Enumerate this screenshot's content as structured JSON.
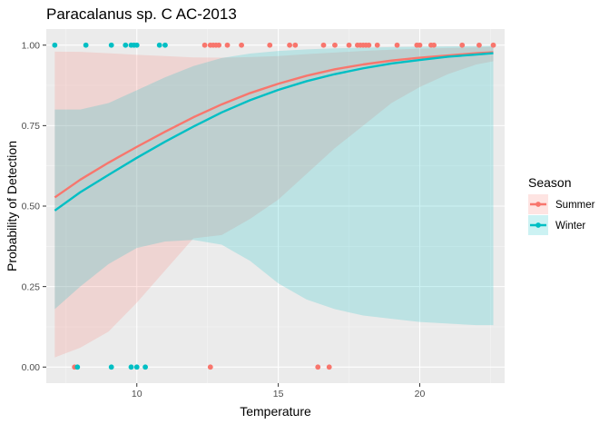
{
  "chart_data": {
    "type": "scatter",
    "title": "Paracalanus sp. C AC-2013",
    "xlabel": "Temperature",
    "ylabel": "Probability of Detection",
    "xlim": [
      6.8,
      23.0
    ],
    "ylim": [
      -0.05,
      1.05
    ],
    "x_ticks": [
      10,
      15,
      20
    ],
    "x_tick_labels": [
      "10",
      "15",
      "20"
    ],
    "y_ticks": [
      0,
      0.25,
      0.5,
      0.75,
      1.0
    ],
    "y_tick_labels": [
      "0.00",
      "0.25",
      "0.50",
      "0.75",
      "1.00"
    ],
    "grid": true,
    "legend": {
      "title": "Season",
      "position": "right"
    },
    "series": [
      {
        "name": "Summer",
        "color": "#F8766D",
        "points": {
          "x": [
            7.8,
            12.6,
            16.4,
            16.8,
            12.4,
            12.6,
            12.7,
            12.8,
            12.9,
            13.2,
            13.7,
            14.7,
            15.4,
            15.6,
            16.6,
            17.0,
            17.5,
            17.8,
            17.9,
            18.0,
            18.1,
            18.2,
            18.5,
            19.2,
            19.9,
            20.0,
            20.4,
            20.5,
            21.5,
            22.1,
            22.6
          ],
          "y": [
            0,
            0,
            0,
            0,
            1,
            1,
            1,
            1,
            1,
            1,
            1,
            1,
            1,
            1,
            1,
            1,
            1,
            1,
            1,
            1,
            1,
            1,
            1,
            1,
            1,
            1,
            1,
            1,
            1,
            1,
            1
          ]
        },
        "fit": {
          "x": [
            7.1,
            8,
            9,
            10,
            11,
            12,
            13,
            14,
            15,
            16,
            17,
            18,
            19,
            20,
            21,
            22,
            22.6
          ],
          "y": [
            0.527,
            0.582,
            0.635,
            0.684,
            0.731,
            0.776,
            0.816,
            0.851,
            0.88,
            0.905,
            0.925,
            0.94,
            0.952,
            0.961,
            0.968,
            0.975,
            0.978
          ],
          "lower": [
            0.03,
            0.06,
            0.11,
            0.2,
            0.3,
            0.4,
            0.41,
            0.46,
            0.52,
            0.6,
            0.68,
            0.75,
            0.82,
            0.87,
            0.91,
            0.94,
            0.95
          ],
          "upper": [
            0.98,
            0.979,
            0.975,
            0.97,
            0.966,
            0.962,
            0.961,
            0.963,
            0.966,
            0.972,
            0.977,
            0.982,
            0.986,
            0.989,
            0.991,
            0.993,
            0.995
          ]
        }
      },
      {
        "name": "Winter",
        "color": "#00BFC4",
        "points": {
          "x": [
            7.9,
            9.1,
            9.8,
            10.0,
            10.3,
            7.1,
            8.2,
            9.1,
            9.6,
            9.8,
            9.9,
            10.0,
            10.8,
            11.0
          ],
          "y": [
            0,
            0,
            0,
            0,
            0,
            1,
            1,
            1,
            1,
            1,
            1,
            1,
            1,
            1
          ]
        },
        "fit": {
          "x": [
            7.1,
            8,
            9,
            10,
            11,
            12,
            13,
            14,
            15,
            16,
            17,
            18,
            19,
            20,
            21,
            22,
            22.6
          ],
          "y": [
            0.486,
            0.543,
            0.597,
            0.65,
            0.7,
            0.747,
            0.791,
            0.829,
            0.861,
            0.888,
            0.91,
            0.928,
            0.943,
            0.954,
            0.964,
            0.971,
            0.975
          ],
          "lower": [
            0.18,
            0.25,
            0.32,
            0.37,
            0.39,
            0.395,
            0.38,
            0.33,
            0.26,
            0.21,
            0.18,
            0.16,
            0.15,
            0.14,
            0.135,
            0.13,
            0.13
          ],
          "upper": [
            0.8,
            0.8,
            0.82,
            0.86,
            0.9,
            0.935,
            0.96,
            0.974,
            0.982,
            0.987,
            0.99,
            0.992,
            0.994,
            0.995,
            0.996,
            0.997,
            0.998
          ]
        }
      }
    ]
  }
}
